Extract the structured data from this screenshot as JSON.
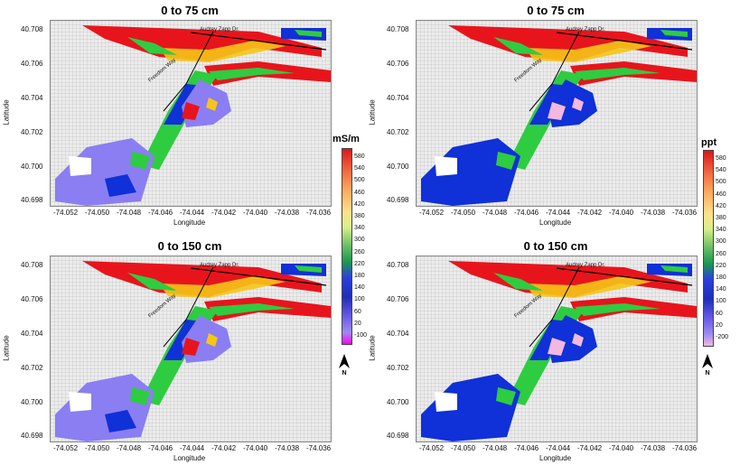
{
  "panels": [
    {
      "title": "0 to 75 cm"
    },
    {
      "title": "0 to 75 cm"
    },
    {
      "title": "0 to 150 cm"
    },
    {
      "title": "0 to 150 cm"
    }
  ],
  "axes": {
    "xlabel": "Longitude",
    "ylabel": "Latitude",
    "xticks": [
      "-74.052",
      "-74.050",
      "-74.048",
      "-74.046",
      "-74.044",
      "-74.042",
      "-74.040",
      "-74.038",
      "-74.036"
    ],
    "yticks": [
      "40.708",
      "40.706",
      "40.704",
      "40.702",
      "40.700",
      "40.698"
    ]
  },
  "roads": {
    "audrey": "Audrey Zapp Dr.",
    "freedom": "Freedom Way"
  },
  "legend_left": {
    "title": "mS/m",
    "ticks": [
      "580",
      "540",
      "500",
      "460",
      "420",
      "380",
      "340",
      "300",
      "260",
      "220",
      "180",
      "140",
      "100",
      "60",
      "20",
      "-100"
    ],
    "low_color": "#ff00ff"
  },
  "legend_right": {
    "title": "ppt",
    "ticks": [
      "580",
      "540",
      "500",
      "460",
      "420",
      "380",
      "340",
      "300",
      "260",
      "220",
      "180",
      "140",
      "100",
      "60",
      "20",
      "-200"
    ],
    "low_color": "#f2b8e0"
  },
  "north_label": "N",
  "colors": {
    "high": "#e8141c",
    "mid_high": "#f5c518",
    "mid": "#2ecc40",
    "mid_low": "#1030d8",
    "low": "#8a7ef2"
  }
}
